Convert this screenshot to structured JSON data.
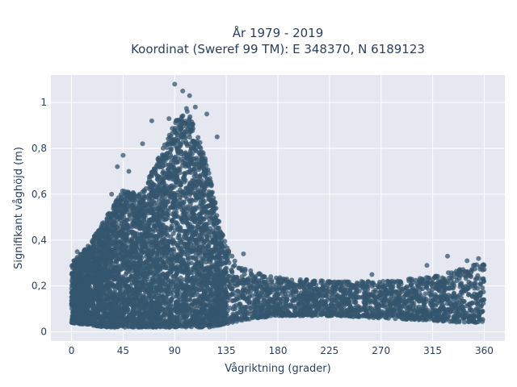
{
  "chart_data": {
    "type": "scatter",
    "title_line1": "År 1979 - 2019",
    "title_line2": "Koordinat (Sweref 99 TM): E 348370, N 6189123",
    "xlabel": "Vågriktning (grader)",
    "ylabel": "Signifikant våghöjd (m)",
    "xlim": [
      -18,
      378
    ],
    "ylim": [
      -0.04,
      1.12
    ],
    "xticks": [
      0,
      45,
      90,
      135,
      180,
      225,
      270,
      315,
      360
    ],
    "xtick_labels": [
      "0",
      "45",
      "90",
      "135",
      "180",
      "225",
      "270",
      "315",
      "360"
    ],
    "yticks": [
      0,
      0.2,
      0.4,
      0.6,
      0.8,
      1
    ],
    "ytick_labels": [
      "0",
      "0,2",
      "0,4",
      "0,6",
      "0,8",
      "1"
    ],
    "grid": true,
    "legend": "none",
    "marker_color": "#34566e",
    "plot_bg": "#e5e8f0",
    "envelope": {
      "direction": [
        0,
        15,
        30,
        45,
        60,
        75,
        90,
        100,
        110,
        120,
        130,
        140,
        150,
        160,
        180,
        200,
        225,
        270,
        315,
        340,
        360
      ],
      "upper": [
        0.3,
        0.38,
        0.5,
        0.62,
        0.6,
        0.75,
        0.92,
        0.98,
        0.86,
        0.7,
        0.45,
        0.32,
        0.28,
        0.26,
        0.24,
        0.23,
        0.22,
        0.22,
        0.24,
        0.28,
        0.3
      ],
      "lower": [
        0.04,
        0.03,
        0.02,
        0.02,
        0.02,
        0.02,
        0.02,
        0.02,
        0.02,
        0.02,
        0.03,
        0.04,
        0.05,
        0.06,
        0.07,
        0.07,
        0.07,
        0.06,
        0.05,
        0.04,
        0.04
      ]
    },
    "outliers": [
      {
        "x": 90,
        "y": 1.08
      },
      {
        "x": 97,
        "y": 1.05
      },
      {
        "x": 103,
        "y": 1.03
      },
      {
        "x": 108,
        "y": 0.98
      },
      {
        "x": 118,
        "y": 0.95
      },
      {
        "x": 85,
        "y": 0.93
      },
      {
        "x": 70,
        "y": 0.92
      },
      {
        "x": 62,
        "y": 0.82
      },
      {
        "x": 45,
        "y": 0.77
      },
      {
        "x": 40,
        "y": 0.72
      },
      {
        "x": 50,
        "y": 0.7
      },
      {
        "x": 35,
        "y": 0.6
      },
      {
        "x": 127,
        "y": 0.85
      },
      {
        "x": 140,
        "y": 0.33
      },
      {
        "x": 150,
        "y": 0.34
      },
      {
        "x": 262,
        "y": 0.25
      },
      {
        "x": 310,
        "y": 0.29
      },
      {
        "x": 328,
        "y": 0.33
      },
      {
        "x": 345,
        "y": 0.31
      },
      {
        "x": 355,
        "y": 0.32
      },
      {
        "x": 5,
        "y": 0.35
      },
      {
        "x": 10,
        "y": 0.34
      },
      {
        "x": 2,
        "y": 0.31
      }
    ]
  }
}
